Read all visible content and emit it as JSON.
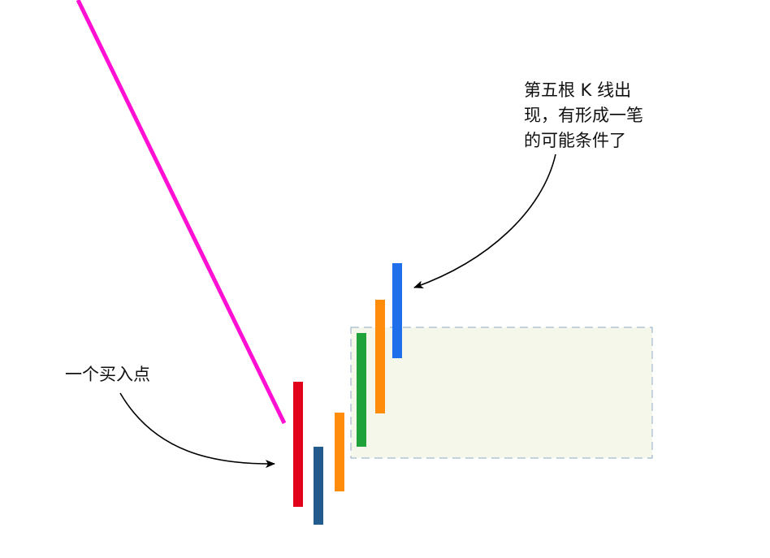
{
  "annotations": {
    "fifth_k_lines": [
      "第五根 K 线出",
      "现，有形成一笔",
      "的可能条件了"
    ],
    "buy_point": "一个买入点"
  },
  "colors": {
    "trend_line": "#ff10d2",
    "red": "#e2001a",
    "navy": "#245b8f",
    "orange": "#ff8c0a",
    "green": "#1fa23a",
    "blue": "#1f6fea",
    "box_fill": "#f4f7ea",
    "box_border": "#8fa9c9",
    "arrow": "#000000"
  },
  "candles": [
    {
      "name": "k-bar-1",
      "color": "red"
    },
    {
      "name": "k-bar-2",
      "color": "navy"
    },
    {
      "name": "k-bar-3",
      "color": "orange"
    },
    {
      "name": "k-bar-4",
      "color": "green"
    },
    {
      "name": "k-bar-5",
      "color": "orange"
    },
    {
      "name": "k-bar-6",
      "color": "blue"
    }
  ]
}
